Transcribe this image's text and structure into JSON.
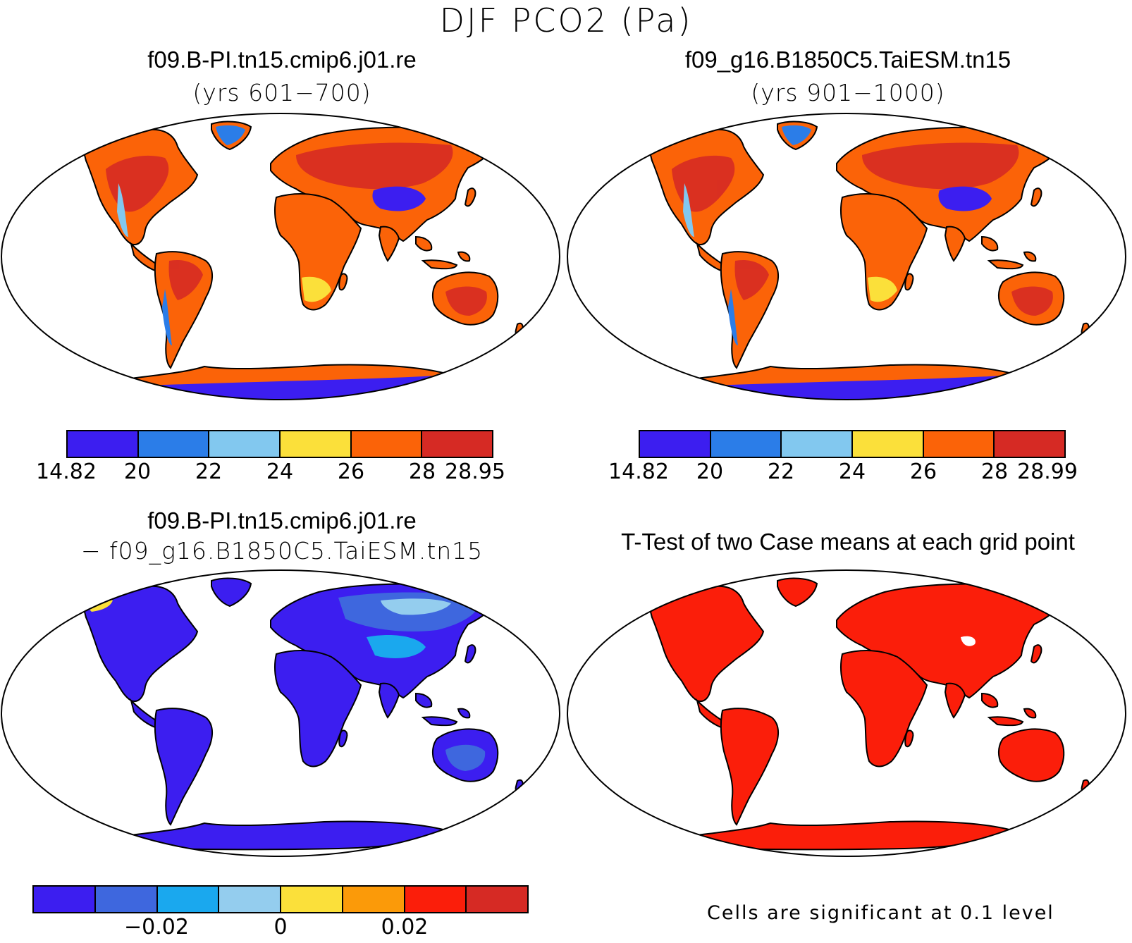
{
  "title": "DJF PCO2 (Pa)",
  "panels": [
    {
      "title": "f09.B-PI.tn15.cmip6.j01.re",
      "subtitle": "(yrs 601−700)",
      "colorbar": {
        "colors": [
          "#3c1ef0",
          "#2b7de8",
          "#82c8ef",
          "#fbe03a",
          "#fb6308",
          "#d62a24"
        ],
        "tick_labels": [
          "14.82",
          "20",
          "22",
          "24",
          "26",
          "28",
          "28.95"
        ]
      }
    },
    {
      "title": "f09_g16.B1850C5.TaiESM.tn15",
      "subtitle": "(yrs 901−1000)",
      "colorbar": {
        "colors": [
          "#3c1ef0",
          "#2b7de8",
          "#82c8ef",
          "#fbe03a",
          "#fb6308",
          "#d62a24"
        ],
        "tick_labels": [
          "14.82",
          "20",
          "22",
          "24",
          "26",
          "28",
          "28.99"
        ]
      }
    },
    {
      "title": "f09.B-PI.tn15.cmip6.j01.re",
      "subtitle": "− f09_g16.B1850C5.TaiESM.tn15",
      "colorbar": {
        "colors": [
          "#3c1ef0",
          "#3e67de",
          "#1aa8ee",
          "#94cdee",
          "#fbe03a",
          "#fb9a09",
          "#fb1e0a",
          "#d62a24"
        ],
        "tick_labels": [
          "−0.02",
          "0",
          "0.02"
        ]
      }
    },
    {
      "title": "T-Test of two Case means at each grid point",
      "note": "Cells are significant at 0.1 level",
      "fill_color": "#fb1e0a"
    }
  ]
}
